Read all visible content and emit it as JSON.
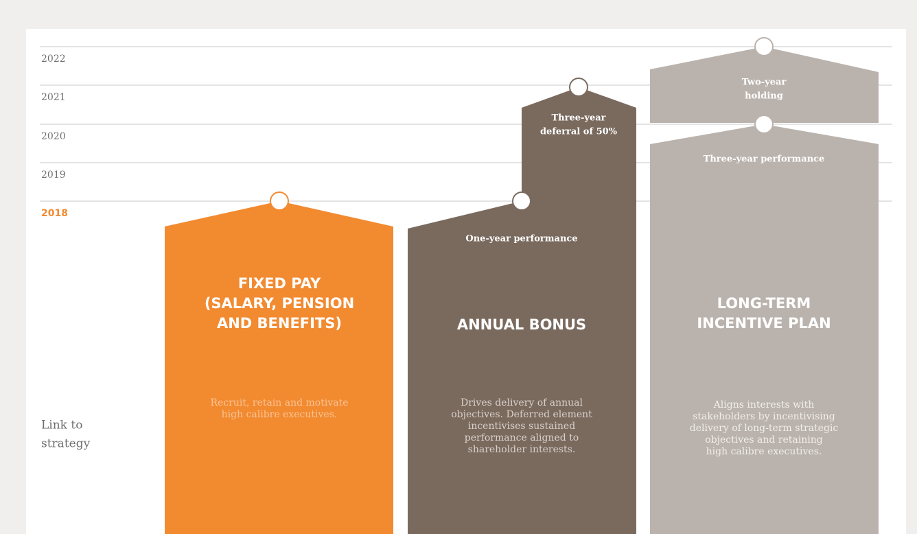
{
  "years": [
    "2022",
    "2021",
    "2020",
    "2019",
    "2018"
  ],
  "side_label": [
    "Link to",
    "strategy"
  ],
  "columns": [
    {
      "title": [
        "FIXED PAY",
        "(SALARY, PENSION",
        "AND BENEFITS)"
      ],
      "description": [
        "Recruit, retain and motivate",
        "high calibre executives."
      ]
    },
    {
      "title": [
        "ANNUAL BONUS"
      ],
      "labels": [
        [
          "One-year performance"
        ],
        [
          "Three-year",
          "deferral of 50%"
        ]
      ],
      "description": [
        "Drives delivery of annual",
        "objectives. Deferred element",
        "incentivises sustained",
        "performance aligned to",
        "shareholder interests."
      ]
    },
    {
      "title": [
        "LONG-TERM",
        "INCENTIVE PLAN"
      ],
      "labels": [
        [
          "Three-year performance"
        ],
        [
          "Two-year",
          "holding"
        ]
      ],
      "description": [
        "Aligns interests with",
        "stakeholders by incentivising",
        "delivery of long-term strategic",
        "objectives and retaining",
        "high calibre executives."
      ]
    }
  ]
}
